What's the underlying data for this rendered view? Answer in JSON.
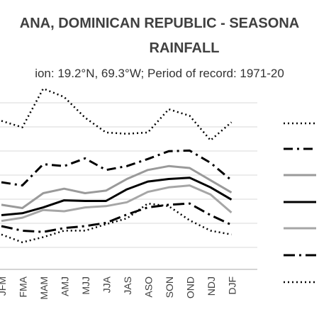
{
  "chart_data": {
    "type": "line",
    "title_line1": "ANA, DOMINICAN REPUBLIC - SEASONA",
    "title_line2": "RAINFALL",
    "subtitle": "ion: 19.2°N, 69.3°W; Period of record: 1971-20",
    "categories": [
      "JFM",
      "FMA",
      "MAM",
      "AMJ",
      "MJJ",
      "JJA",
      "JAS",
      "ASO",
      "SON",
      "OND",
      "NDJ",
      "DJF"
    ],
    "tick_labels": [
      "JFM",
      "FMA",
      "MAM",
      "AMJ",
      "MJJ",
      "JJA",
      "JAS",
      "ASO",
      "SON",
      "OND",
      "NDJ",
      "DJF"
    ],
    "ylim": [
      0,
      280
    ],
    "grid": true,
    "legend_position": "right",
    "series": [
      {
        "style": "dotted",
        "color": "#000000",
        "values": [
          230,
          220,
          280,
          267,
          235,
          212,
          210,
          212,
          248,
          238,
          200,
          228
        ]
      },
      {
        "style": "dash-dot",
        "color": "#000000",
        "values": [
          135,
          130,
          163,
          160,
          172,
          154,
          160,
          171,
          183,
          184,
          165,
          138
        ]
      },
      {
        "style": "solid",
        "color": "#9a9a9a",
        "values": [
          100,
          95,
          118,
          125,
          118,
          122,
          140,
          154,
          160,
          157,
          138,
          119
        ]
      },
      {
        "style": "solid",
        "color": "#000000",
        "values": [
          84,
          87,
          96,
          107,
          106,
          106,
          124,
          136,
          140,
          142,
          127,
          108
        ]
      },
      {
        "style": "solid",
        "color": "#a6a6a6",
        "values": [
          75,
          80,
          92,
          90,
          96,
          98,
          104,
          120,
          127,
          130,
          116,
          88
        ]
      },
      {
        "style": "long-dash-dot",
        "color": "#000000",
        "values": [
          67,
          60,
          58,
          64,
          67,
          72,
          85,
          96,
          100,
          102,
          84,
          69
        ]
      },
      {
        "style": "dotted",
        "color": "#000000",
        "values": [
          54,
          42,
          50,
          60,
          60,
          70,
          79,
          102,
          98,
          76,
          60,
          54
        ]
      }
    ]
  }
}
